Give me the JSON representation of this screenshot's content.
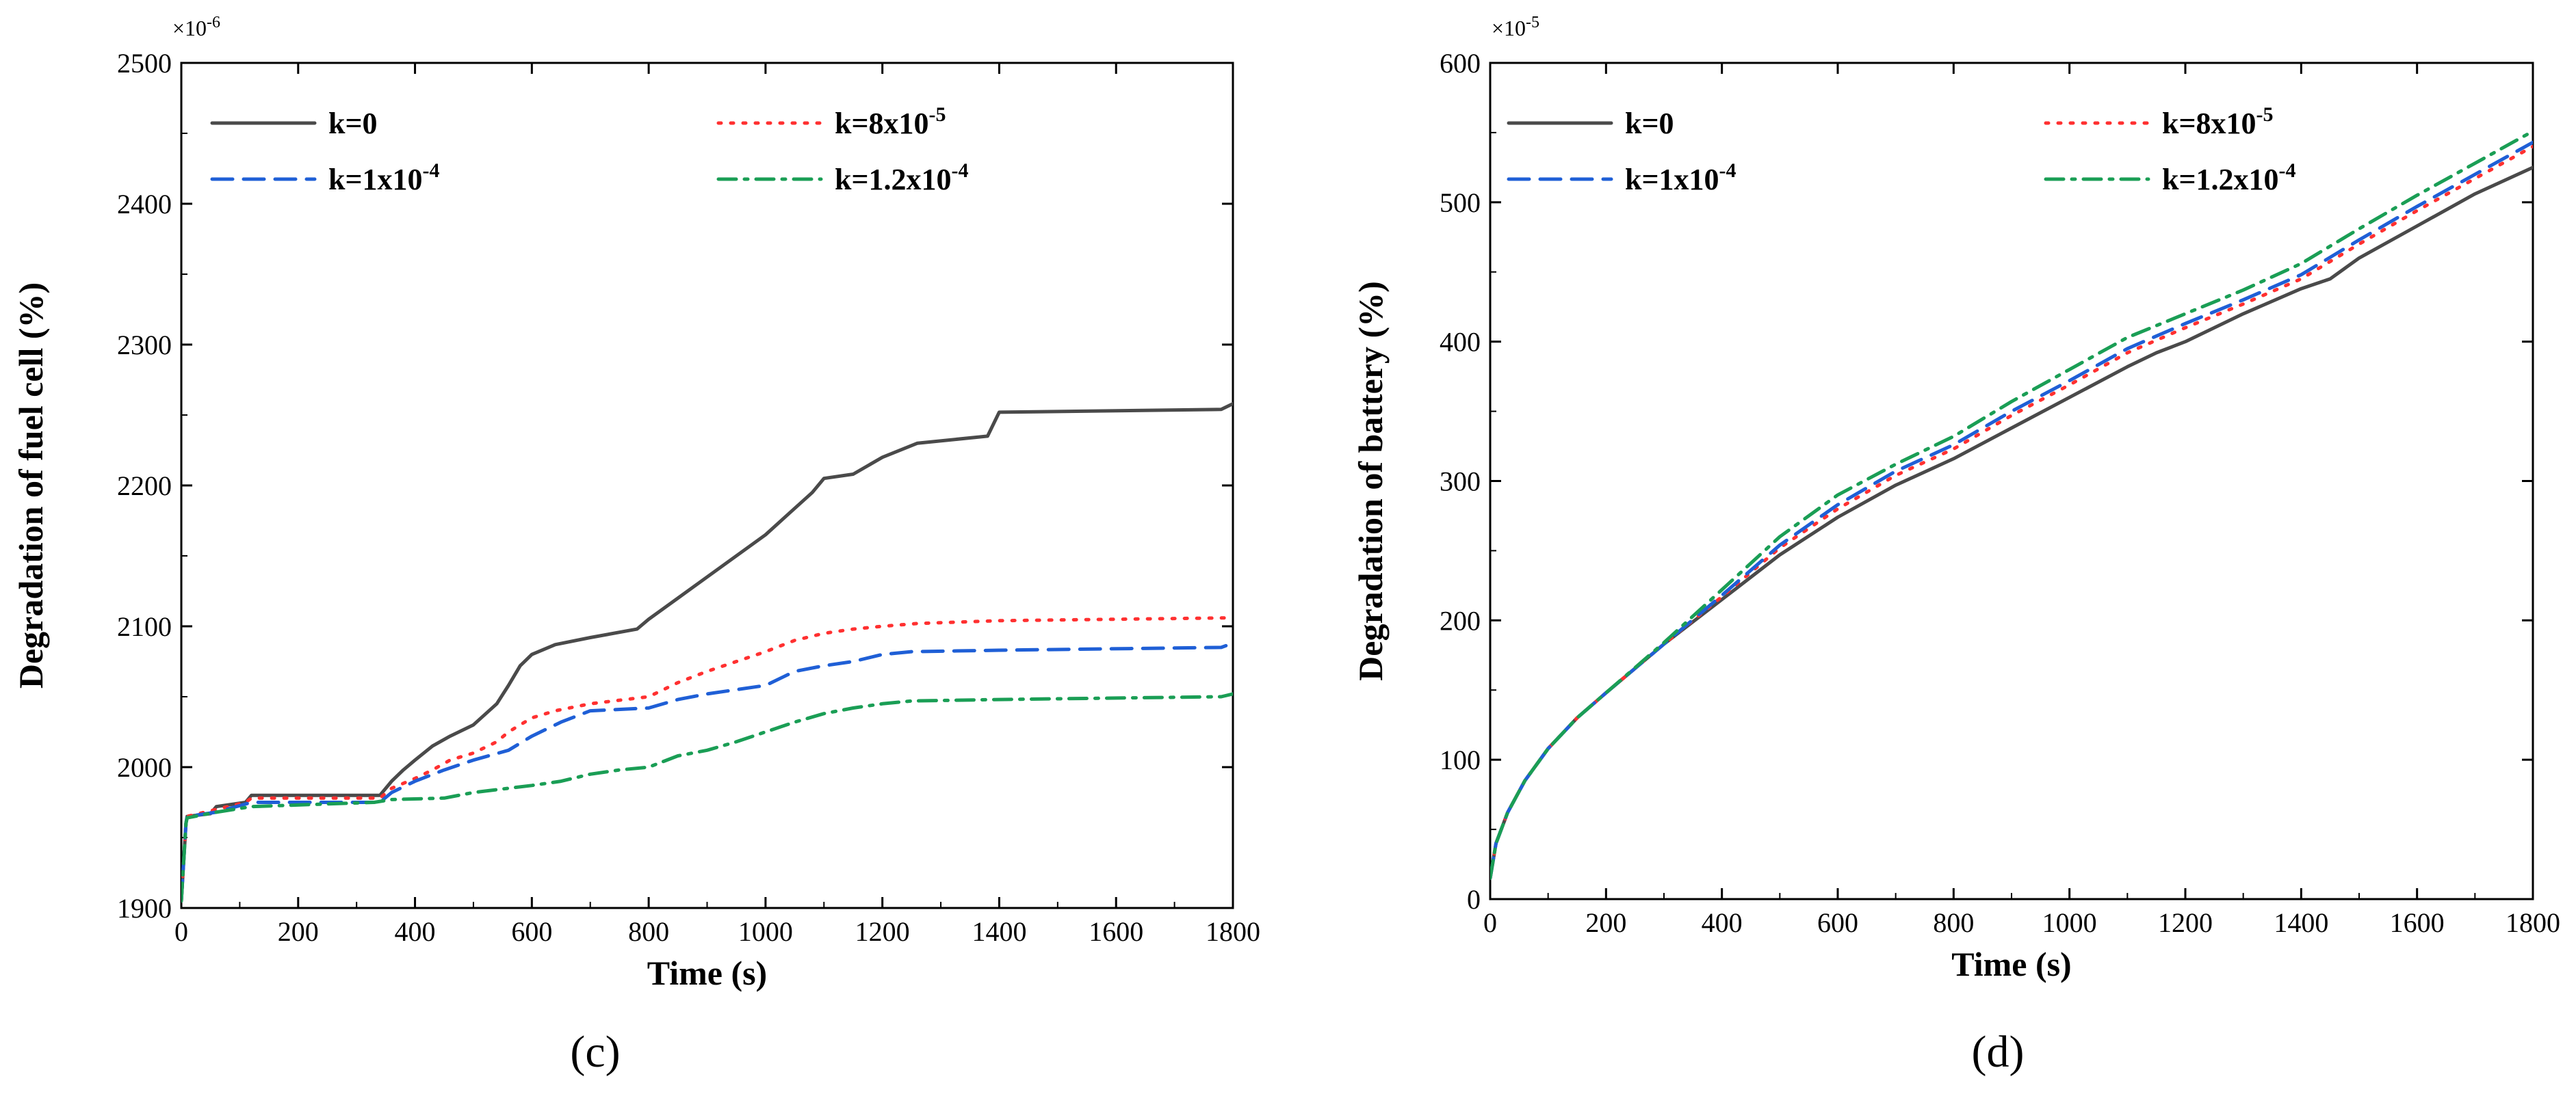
{
  "chart_data": [
    {
      "type": "line",
      "panel_label": "(c)",
      "xlabel": "Time (s)",
      "ylabel": "Degradation of fuel cell (%)",
      "y_multiplier": "×10",
      "y_multiplier_exp": "-6",
      "xlim": [
        0,
        1800
      ],
      "ylim": [
        1900,
        2500
      ],
      "xticks": [
        "0",
        "200",
        "400",
        "600",
        "800",
        "1000",
        "1200",
        "1400",
        "1600",
        "1800"
      ],
      "yticks": [
        "1900",
        "2000",
        "2100",
        "2200",
        "2300",
        "2400",
        "2500"
      ],
      "series": [
        {
          "name": "k=0",
          "label_base": "k=0",
          "label_exp": "",
          "color": "#4a4a4a",
          "dash": "solid",
          "x": [
            0,
            8,
            10,
            50,
            60,
            110,
            120,
            200,
            340,
            360,
            380,
            400,
            430,
            460,
            500,
            540,
            560,
            580,
            600,
            640,
            700,
            780,
            800,
            850,
            900,
            950,
            1000,
            1040,
            1080,
            1100,
            1150,
            1200,
            1260,
            1380,
            1400,
            1780,
            1800
          ],
          "y": [
            1905,
            1960,
            1965,
            1967,
            1972,
            1975,
            1980,
            1980,
            1980,
            1990,
            1998,
            2005,
            2015,
            2022,
            2030,
            2045,
            2058,
            2072,
            2080,
            2087,
            2092,
            2098,
            2105,
            2120,
            2135,
            2150,
            2165,
            2180,
            2195,
            2205,
            2208,
            2220,
            2230,
            2235,
            2252,
            2254,
            2258
          ]
        },
        {
          "name": "k=8x10-5",
          "label_base": "k=8x10",
          "label_exp": "-5",
          "color": "#ff3030",
          "dash": "dot",
          "x": [
            0,
            8,
            10,
            60,
            110,
            120,
            340,
            360,
            400,
            430,
            460,
            500,
            540,
            560,
            600,
            640,
            700,
            800,
            850,
            900,
            950,
            1000,
            1050,
            1100,
            1150,
            1200,
            1260,
            1400,
            1800
          ],
          "y": [
            1905,
            1960,
            1965,
            1970,
            1975,
            1978,
            1978,
            1985,
            1992,
            1998,
            2005,
            2010,
            2018,
            2025,
            2035,
            2040,
            2045,
            2050,
            2060,
            2068,
            2075,
            2082,
            2090,
            2095,
            2098,
            2100,
            2102,
            2104,
            2106
          ]
        },
        {
          "name": "k=1x10-4",
          "label_base": "k=1x10",
          "label_exp": "-4",
          "color": "#1f5fd6",
          "dash": "dash",
          "x": [
            0,
            8,
            10,
            60,
            120,
            340,
            360,
            400,
            450,
            500,
            560,
            600,
            650,
            700,
            800,
            850,
            900,
            950,
            1000,
            1050,
            1100,
            1150,
            1200,
            1250,
            1400,
            1780,
            1800
          ],
          "y": [
            1905,
            1960,
            1965,
            1968,
            1975,
            1975,
            1982,
            1990,
            1998,
            2005,
            2012,
            2022,
            2032,
            2040,
            2042,
            2048,
            2052,
            2055,
            2058,
            2068,
            2072,
            2075,
            2080,
            2082,
            2083,
            2085,
            2088
          ]
        },
        {
          "name": "k=1.2x10-4",
          "label_base": "k=1.2x10",
          "label_exp": "-4",
          "color": "#1a9e55",
          "dash": "dashdot",
          "x": [
            0,
            8,
            10,
            60,
            120,
            330,
            360,
            450,
            500,
            560,
            600,
            650,
            700,
            750,
            800,
            850,
            900,
            950,
            1000,
            1050,
            1100,
            1150,
            1200,
            1250,
            1400,
            1780,
            1800
          ],
          "y": [
            1905,
            1960,
            1964,
            1968,
            1972,
            1975,
            1977,
            1978,
            1982,
            1985,
            1987,
            1990,
            1995,
            1998,
            2000,
            2008,
            2012,
            2018,
            2025,
            2032,
            2038,
            2042,
            2045,
            2047,
            2048,
            2050,
            2052
          ]
        }
      ]
    },
    {
      "type": "line",
      "panel_label": "(d)",
      "xlabel": "Time (s)",
      "ylabel": "Degradation of battery (%)",
      "y_multiplier": "×10",
      "y_multiplier_exp": "-5",
      "xlim": [
        0,
        1800
      ],
      "ylim": [
        0,
        600
      ],
      "xticks": [
        "0",
        "200",
        "400",
        "600",
        "800",
        "1000",
        "1200",
        "1400",
        "1600",
        "1800"
      ],
      "yticks": [
        "0",
        "100",
        "200",
        "300",
        "400",
        "500",
        "600"
      ],
      "series": [
        {
          "name": "k=0",
          "label_base": "k=0",
          "label_exp": "",
          "color": "#4a4a4a",
          "dash": "solid",
          "x": [
            0,
            10,
            30,
            60,
            100,
            150,
            200,
            300,
            400,
            500,
            600,
            700,
            800,
            900,
            1000,
            1100,
            1150,
            1200,
            1300,
            1400,
            1450,
            1500,
            1600,
            1700,
            1800
          ],
          "y": [
            15,
            40,
            62,
            85,
            108,
            130,
            148,
            183,
            215,
            247,
            274,
            297,
            316,
            338,
            360,
            382,
            392,
            400,
            420,
            438,
            445,
            460,
            483,
            506,
            525
          ]
        },
        {
          "name": "k=8x10-5",
          "label_base": "k=8x10",
          "label_exp": "-5",
          "color": "#ff3030",
          "dash": "dot",
          "x": [
            0,
            10,
            30,
            60,
            100,
            150,
            200,
            300,
            400,
            500,
            600,
            700,
            800,
            900,
            1000,
            1100,
            1200,
            1300,
            1400,
            1500,
            1600,
            1700,
            1800
          ],
          "y": [
            15,
            40,
            62,
            85,
            108,
            130,
            148,
            183,
            217,
            252,
            280,
            304,
            323,
            347,
            369,
            392,
            410,
            427,
            445,
            470,
            494,
            517,
            540
          ]
        },
        {
          "name": "k=1x10-4",
          "label_base": "k=1x10",
          "label_exp": "-4",
          "color": "#1f5fd6",
          "dash": "dash",
          "x": [
            0,
            10,
            30,
            60,
            100,
            150,
            200,
            300,
            400,
            500,
            600,
            700,
            800,
            900,
            1000,
            1100,
            1200,
            1300,
            1400,
            1500,
            1600,
            1700,
            1800
          ],
          "y": [
            15,
            40,
            62,
            85,
            108,
            130,
            148,
            183,
            218,
            254,
            283,
            307,
            326,
            350,
            372,
            395,
            413,
            430,
            448,
            473,
            497,
            520,
            543
          ]
        },
        {
          "name": "k=1.2x10-4",
          "label_base": "k=1.2x10",
          "label_exp": "-4",
          "color": "#1a9e55",
          "dash": "dashdot",
          "x": [
            0,
            10,
            30,
            60,
            100,
            150,
            200,
            300,
            400,
            500,
            600,
            700,
            800,
            900,
            1000,
            1100,
            1200,
            1300,
            1400,
            1500,
            1600,
            1700,
            1800
          ],
          "y": [
            15,
            40,
            62,
            85,
            108,
            130,
            148,
            184,
            222,
            260,
            290,
            312,
            332,
            357,
            380,
            403,
            420,
            437,
            456,
            481,
            505,
            528,
            551
          ]
        }
      ]
    }
  ]
}
